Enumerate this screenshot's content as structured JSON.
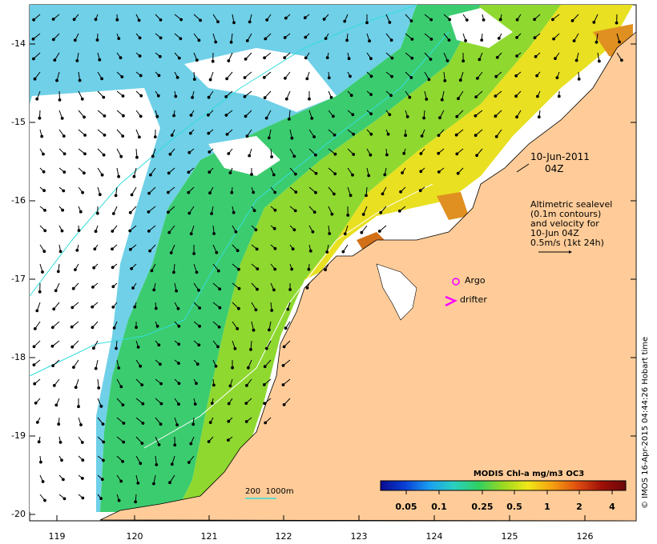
{
  "map": {
    "date": "10-Jun-2011",
    "time": "04Z",
    "notes": [
      "Altimetric sealevel",
      "(0.1m contours)",
      "and velocity for",
      "10-Jun 04Z",
      "0.5m/s (1kt 24h)"
    ],
    "markers": {
      "argo": "Argo",
      "drifter": "drifter"
    },
    "depth_scale": "200  1000m",
    "credit": "© IMOS 16-Apr-2015 04:44:26 Hobart time",
    "lat_ticks": [
      "-14",
      "-15",
      "-16",
      "-17",
      "-18",
      "-19",
      "-20"
    ],
    "lon_ticks": [
      "119",
      "120",
      "121",
      "122",
      "123",
      "124",
      "125",
      "126"
    ]
  },
  "colorbar": {
    "title": "MODIS Chl-a mg/m3 OC3",
    "ticks": [
      "0.05",
      "0.1",
      "0.25",
      "0.5",
      "1",
      "2",
      "4"
    ],
    "colors": [
      "#0b0b8c",
      "#0a3fd8",
      "#1aa0f0",
      "#2ad0c0",
      "#30d060",
      "#9ad820",
      "#f0e818",
      "#f5a010",
      "#e05010",
      "#a01008",
      "#6a0808"
    ]
  },
  "colors": {
    "land": "#ffcc99",
    "accent_magenta": "#ff00ff",
    "bathy_line": "#33dddd"
  }
}
